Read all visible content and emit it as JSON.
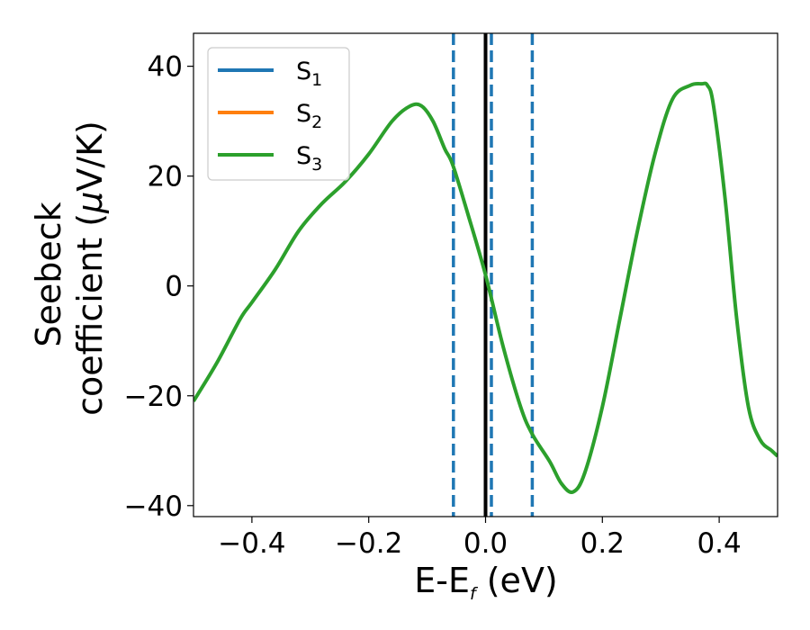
{
  "chart_data": {
    "type": "line",
    "xlabel": {
      "main": "E-E",
      "sub": "f",
      "rest": " (eV)"
    },
    "ylabel": {
      "line1": "Seebeck",
      "line2_prefix": "coefficient  (",
      "mu": "μ",
      "line2_suffix": "V/K)"
    },
    "xlim": [
      -0.5,
      0.5
    ],
    "ylim": [
      -42,
      46
    ],
    "xticks": [
      {
        "value": -0.4,
        "label": "−0.4"
      },
      {
        "value": -0.2,
        "label": "−0.2"
      },
      {
        "value": 0.0,
        "label": "0.0"
      },
      {
        "value": 0.2,
        "label": "0.2"
      },
      {
        "value": 0.4,
        "label": "0.4"
      }
    ],
    "yticks": [
      {
        "value": 40,
        "label": "40"
      },
      {
        "value": 20,
        "label": "20"
      },
      {
        "value": 0,
        "label": "0"
      },
      {
        "value": -20,
        "label": "−20"
      },
      {
        "value": -40,
        "label": "−40"
      }
    ],
    "legend_position": "top-left",
    "series": [
      {
        "name": "S",
        "sub": "1",
        "color": "#1f77b4"
      },
      {
        "name": "S",
        "sub": "2",
        "color": "#ff7f0e"
      },
      {
        "name": "S",
        "sub": "3",
        "color": "#2ca02c"
      }
    ],
    "curve": {
      "color": "#2ca02c",
      "x": [
        -0.5,
        -0.46,
        -0.42,
        -0.4,
        -0.36,
        -0.32,
        -0.28,
        -0.24,
        -0.2,
        -0.16,
        -0.13,
        -0.11,
        -0.09,
        -0.07,
        -0.056,
        -0.03,
        0.0,
        0.03,
        0.06,
        0.08,
        0.11,
        0.13,
        0.15,
        0.17,
        0.2,
        0.23,
        0.26,
        0.29,
        0.32,
        0.35,
        0.37,
        0.38,
        0.39,
        0.41,
        0.43,
        0.45,
        0.47,
        0.49,
        0.5
      ],
      "y": [
        -21,
        -14,
        -6,
        -3,
        3,
        10,
        15,
        19,
        24,
        30,
        32.7,
        32.8,
        30,
        25,
        22,
        13,
        2,
        -11,
        -22,
        -27,
        -32,
        -36,
        -37.5,
        -34,
        -22,
        -6,
        10,
        24,
        34,
        36.5,
        36.8,
        36.5,
        33,
        16,
        -6,
        -22,
        -28,
        -30,
        -31
      ]
    },
    "vlines": [
      {
        "x": 0.0,
        "color": "#000000",
        "style": "solid"
      },
      {
        "x": -0.055,
        "color": "#1f77b4",
        "style": "dashed"
      },
      {
        "x": 0.01,
        "color": "#1f77b4",
        "style": "dashed"
      },
      {
        "x": 0.08,
        "color": "#1f77b4",
        "style": "dashed"
      }
    ]
  }
}
